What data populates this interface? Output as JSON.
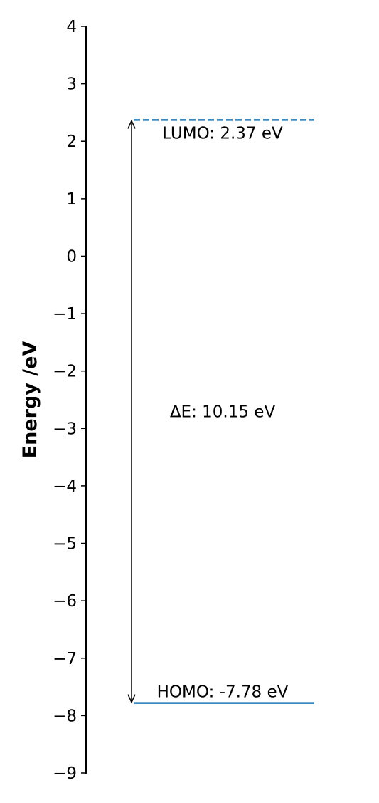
{
  "chart_data": {
    "type": "line",
    "title": "",
    "xlabel": "",
    "ylabel": "Energy /eV",
    "ylim": [
      -9,
      4
    ],
    "yticks": [
      4,
      3,
      2,
      1,
      0,
      -1,
      -2,
      -3,
      -4,
      -5,
      -6,
      -7,
      -8,
      -9
    ],
    "ytick_labels": [
      "4",
      "3",
      "2",
      "1",
      "0",
      "−1",
      "−2",
      "−3",
      "−4",
      "−5",
      "−6",
      "−7",
      "−8",
      "−9"
    ],
    "grid": false,
    "levels": [
      {
        "name": "LUMO",
        "value": 2.37,
        "label": "LUMO: 2.37 eV",
        "style": "dashed",
        "color": "#1f77b4"
      },
      {
        "name": "HOMO",
        "value": -7.78,
        "label": "HOMO: -7.78 eV",
        "style": "solid",
        "color": "#1f77b4"
      }
    ],
    "gap": {
      "from": -7.78,
      "to": 2.37,
      "label": "ΔE: 10.15 eV"
    }
  }
}
